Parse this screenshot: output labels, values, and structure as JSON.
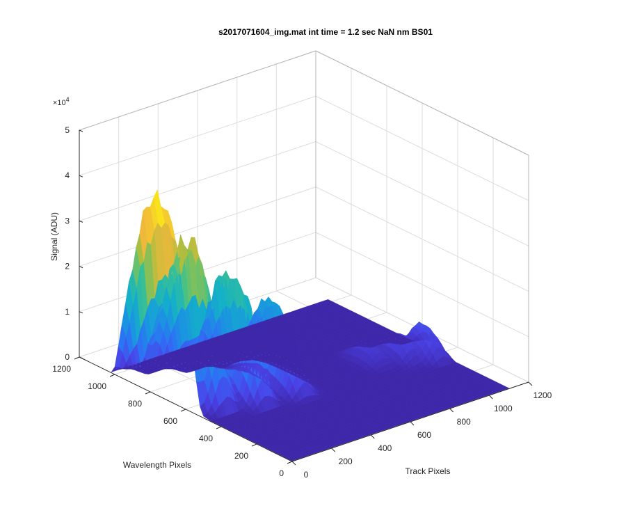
{
  "chart_data": {
    "type": "surface",
    "title": "s2017071604_img.mat int time = 1.2 sec  NaN nm BS01",
    "xlabel": "Track Pixels",
    "ylabel": "Wavelength Pixels",
    "zlabel": "Signal (ADU)",
    "z_multiplier": "×10",
    "z_exponent": "4",
    "xlim": [
      0,
      1200
    ],
    "ylim": [
      0,
      1200
    ],
    "zlim": [
      0,
      50000
    ],
    "x_ticks": [
      "0",
      "200",
      "400",
      "600",
      "800",
      "1000",
      "1200"
    ],
    "y_ticks": [
      "0",
      "200",
      "400",
      "600",
      "800",
      "1000",
      "1200"
    ],
    "z_ticks": [
      "0",
      "1",
      "2",
      "3",
      "4",
      "5"
    ],
    "grid": true,
    "colormap": "parula",
    "colormap_stops": [
      "#3e26a8",
      "#4a43e8",
      "#2d70f5",
      "#1a95e0",
      "#14b1c7",
      "#3fc28a",
      "#a9be40",
      "#f1b83a",
      "#f9e11e"
    ],
    "surface_grid": {
      "x_step": 20,
      "y_step": 20,
      "x_max": 1100,
      "y_max": 1030
    },
    "peaks": [
      {
        "track_center": 0,
        "track_width": 40,
        "wavelength_center": 760,
        "wavelength_width": 250,
        "amplitude": 43000
      },
      {
        "track_center": 100,
        "track_width": 55,
        "wavelength_center": 690,
        "wavelength_width": 230,
        "amplitude": 34000
      },
      {
        "track_center": 250,
        "track_width": 50,
        "wavelength_center": 620,
        "wavelength_width": 220,
        "amplitude": 27000
      },
      {
        "track_center": 420,
        "track_width": 50,
        "wavelength_center": 580,
        "wavelength_width": 210,
        "amplitude": 19000
      },
      {
        "track_center": 850,
        "track_width": 45,
        "wavelength_center": 520,
        "wavelength_width": 120,
        "amplitude": 4000
      },
      {
        "track_center": 960,
        "track_width": 45,
        "wavelength_center": 470,
        "wavelength_width": 120,
        "amplitude": 5000
      },
      {
        "track_center": 1050,
        "track_width": 45,
        "wavelength_center": 420,
        "wavelength_width": 120,
        "amplitude": 7000
      }
    ]
  }
}
